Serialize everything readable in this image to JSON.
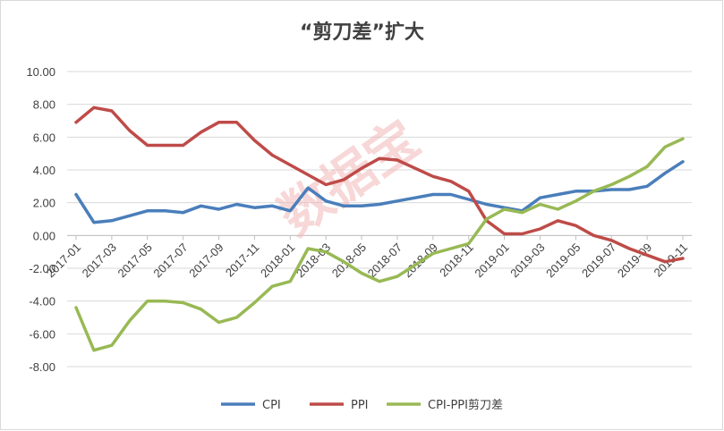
{
  "chart_data": {
    "type": "line",
    "title": "“剪刀差”扩大",
    "watermark": "数据宝",
    "ylim": [
      -8,
      10
    ],
    "yticks": [
      "10.00",
      "8.00",
      "6.00",
      "4.00",
      "2.00",
      "0.00",
      "-2.00",
      "-4.00",
      "-6.00",
      "-8.00"
    ],
    "ytick_values": [
      10,
      8,
      6,
      4,
      2,
      0,
      -2,
      -4,
      -6,
      -8
    ],
    "grid": true,
    "legend": "bottom",
    "x": [
      "2017-01",
      "2017-02",
      "2017-03",
      "2017-04",
      "2017-05",
      "2017-06",
      "2017-07",
      "2017-08",
      "2017-09",
      "2017-10",
      "2017-11",
      "2017-12",
      "2018-01",
      "2018-02",
      "2018-03",
      "2018-04",
      "2018-05",
      "2018-06",
      "2018-07",
      "2018-08",
      "2018-09",
      "2018-10",
      "2018-11",
      "2018-12",
      "2019-01",
      "2019-02",
      "2019-03",
      "2019-04",
      "2019-05",
      "2019-06",
      "2019-07",
      "2019-08",
      "2019-09",
      "2019-10",
      "2019-11"
    ],
    "xtick_labels": [
      "2017-01",
      "2017-03",
      "2017-05",
      "2017-07",
      "2017-09",
      "2017-11",
      "2018-01",
      "2018-03",
      "2018-05",
      "2018-07",
      "2018-09",
      "2018-11",
      "2019-01",
      "2019-03",
      "2019-05",
      "2019-07",
      "2019-09",
      "2019-11"
    ],
    "series": [
      {
        "name": "CPI",
        "color": "#4a7ebb",
        "values": [
          2.5,
          0.8,
          0.9,
          1.2,
          1.5,
          1.5,
          1.4,
          1.8,
          1.6,
          1.9,
          1.7,
          1.8,
          1.5,
          2.9,
          2.1,
          1.8,
          1.8,
          1.9,
          2.1,
          2.3,
          2.5,
          2.5,
          2.2,
          1.9,
          1.7,
          1.5,
          2.3,
          2.5,
          2.7,
          2.7,
          2.8,
          2.8,
          3.0,
          3.8,
          4.5
        ]
      },
      {
        "name": "PPI",
        "color": "#be4b48",
        "values": [
          6.9,
          7.8,
          7.6,
          6.4,
          5.5,
          5.5,
          5.5,
          6.3,
          6.9,
          6.9,
          5.8,
          4.9,
          4.3,
          3.7,
          3.1,
          3.4,
          4.1,
          4.7,
          4.6,
          4.1,
          3.6,
          3.3,
          2.7,
          0.9,
          0.1,
          0.1,
          0.4,
          0.9,
          0.6,
          0.0,
          -0.3,
          -0.8,
          -1.2,
          -1.6,
          -1.4
        ]
      },
      {
        "name": "CPI-PPI剪刀差",
        "color": "#98b954",
        "values": [
          -4.4,
          -7.0,
          -6.7,
          -5.2,
          -4.0,
          -4.0,
          -4.1,
          -4.5,
          -5.3,
          -5.0,
          -4.1,
          -3.1,
          -2.8,
          -0.8,
          -1.0,
          -1.6,
          -2.3,
          -2.8,
          -2.5,
          -1.8,
          -1.1,
          -0.8,
          -0.5,
          1.0,
          1.6,
          1.4,
          1.9,
          1.6,
          2.1,
          2.7,
          3.1,
          3.6,
          4.2,
          5.4,
          5.9
        ]
      }
    ]
  }
}
